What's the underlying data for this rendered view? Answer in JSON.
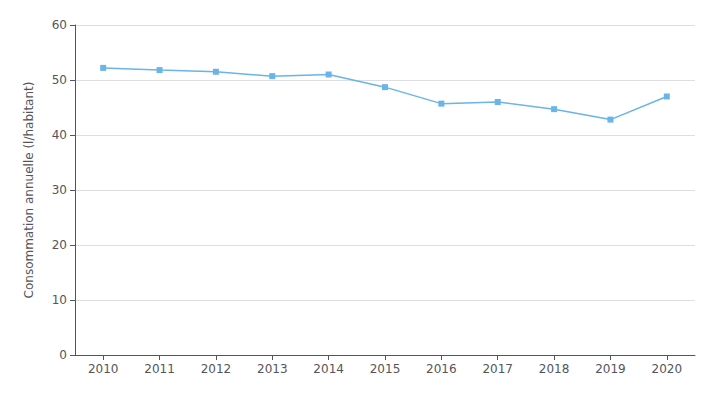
{
  "chart_data": {
    "type": "line",
    "x": [
      2010,
      2011,
      2012,
      2013,
      2014,
      2015,
      2016,
      2017,
      2018,
      2019,
      2020
    ],
    "values": [
      52.2,
      51.8,
      51.5,
      50.7,
      51.0,
      48.7,
      45.7,
      46.0,
      44.7,
      42.8,
      47.0
    ],
    "color": "#6ab4e8",
    "marker": "square",
    "ylabel": "Consommation annuelle (l/habitant)",
    "xlim": [
      2009.5,
      2020.5
    ],
    "xticks": [
      2010,
      2011,
      2012,
      2013,
      2014,
      2015,
      2016,
      2017,
      2018,
      2019,
      2020
    ],
    "ylim": [
      0,
      60
    ],
    "yticks": [
      0,
      10,
      20,
      30,
      40,
      50,
      60
    ],
    "grid": true
  }
}
